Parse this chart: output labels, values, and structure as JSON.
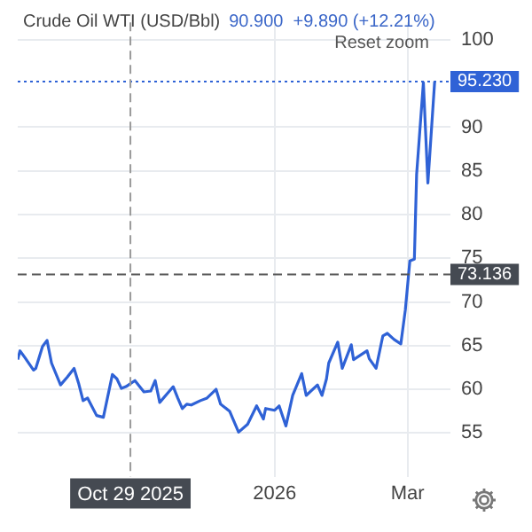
{
  "chart_data": {
    "type": "line",
    "title": "Crude Oil WTI (USD/Bbl)",
    "subtitle": "90.900  +9.890 (+12.21%)",
    "annotations": [
      "Reset zoom"
    ],
    "x": [
      "2025-09-09",
      "2025-09-10",
      "2025-09-12",
      "2025-09-16",
      "2025-09-17",
      "2025-09-20",
      "2025-09-22",
      "2025-09-24",
      "2025-09-28",
      "2025-10-01",
      "2025-10-04",
      "2025-10-06",
      "2025-10-08",
      "2025-10-10",
      "2025-10-14",
      "2025-10-17",
      "2025-10-21",
      "2025-10-23",
      "2025-10-25",
      "2025-10-27",
      "2025-10-31",
      "2025-11-04",
      "2025-11-07",
      "2025-11-09",
      "2025-11-11",
      "2025-11-15",
      "2025-11-17",
      "2025-11-19",
      "2025-11-21",
      "2025-11-23",
      "2025-11-25",
      "2025-11-29",
      "2025-12-02",
      "2025-12-06",
      "2025-12-08",
      "2025-12-12",
      "2025-12-16",
      "2025-12-20",
      "2025-12-24",
      "2025-12-27",
      "2025-12-28",
      "2026-01-01",
      "2026-01-03",
      "2026-01-06",
      "2026-01-09",
      "2026-01-13",
      "2026-01-15",
      "2026-01-20",
      "2026-01-22",
      "2026-01-24",
      "2026-01-25",
      "2026-01-29",
      "2026-01-31",
      "2026-02-04",
      "2026-02-05",
      "2026-02-08",
      "2026-02-11",
      "2026-02-12",
      "2026-02-15",
      "2026-02-18",
      "2026-02-20",
      "2026-02-23",
      "2026-02-26",
      "2026-02-28",
      "2026-03-02",
      "2026-03-04",
      "2026-03-05",
      "2026-03-08",
      "2026-03-10",
      "2026-03-13"
    ],
    "series": [
      {
        "color": "#2f62d6",
        "values": [
          63.4,
          64.4,
          63.7,
          62.2,
          62.4,
          64.9,
          65.6,
          63.0,
          60.5,
          61.4,
          62.4,
          60.7,
          58.7,
          59.0,
          57.0,
          56.8,
          61.7,
          61.2,
          60.1,
          60.3,
          61.0,
          59.7,
          59.8,
          61.0,
          58.5,
          59.7,
          60.3,
          59.0,
          57.8,
          58.3,
          58.2,
          58.7,
          59.0,
          60.0,
          58.3,
          57.5,
          55.1,
          56.0,
          58.1,
          56.6,
          57.8,
          57.6,
          58.1,
          55.8,
          59.3,
          61.8,
          59.3,
          60.5,
          59.3,
          61.2,
          63.0,
          65.4,
          62.4,
          65.1,
          63.4,
          63.9,
          64.4,
          63.5,
          62.4,
          66.1,
          66.4,
          65.7,
          65.2,
          69.1,
          74.7,
          74.9,
          84.6,
          95.1,
          83.6,
          95.2
        ]
      }
    ],
    "xlim": [
      "2025-09-09",
      "2026-03-20"
    ],
    "xticks": [
      {
        "value": "2026-01-01",
        "label": "2026"
      },
      {
        "value": "2026-03-01",
        "label": "Mar"
      }
    ],
    "ylim": [
      50,
      102
    ],
    "yticks": [
      55,
      60,
      65,
      70,
      75,
      80,
      85,
      90,
      100
    ],
    "ref_lines": [
      {
        "axis": "y",
        "value": 95.23,
        "label": "95.230",
        "color": "#2f62d6",
        "line_style": "dotted"
      },
      {
        "axis": "y",
        "value": 73.136,
        "label": "73.136",
        "color": "#555555",
        "line_style": "dashed"
      },
      {
        "axis": "x",
        "value": "2025-10-29",
        "label": "Oct 29 2025",
        "color": "#999999",
        "line_style": "dashed"
      }
    ],
    "grid": true,
    "legend": false,
    "marker": "none",
    "line_style": "solid"
  }
}
